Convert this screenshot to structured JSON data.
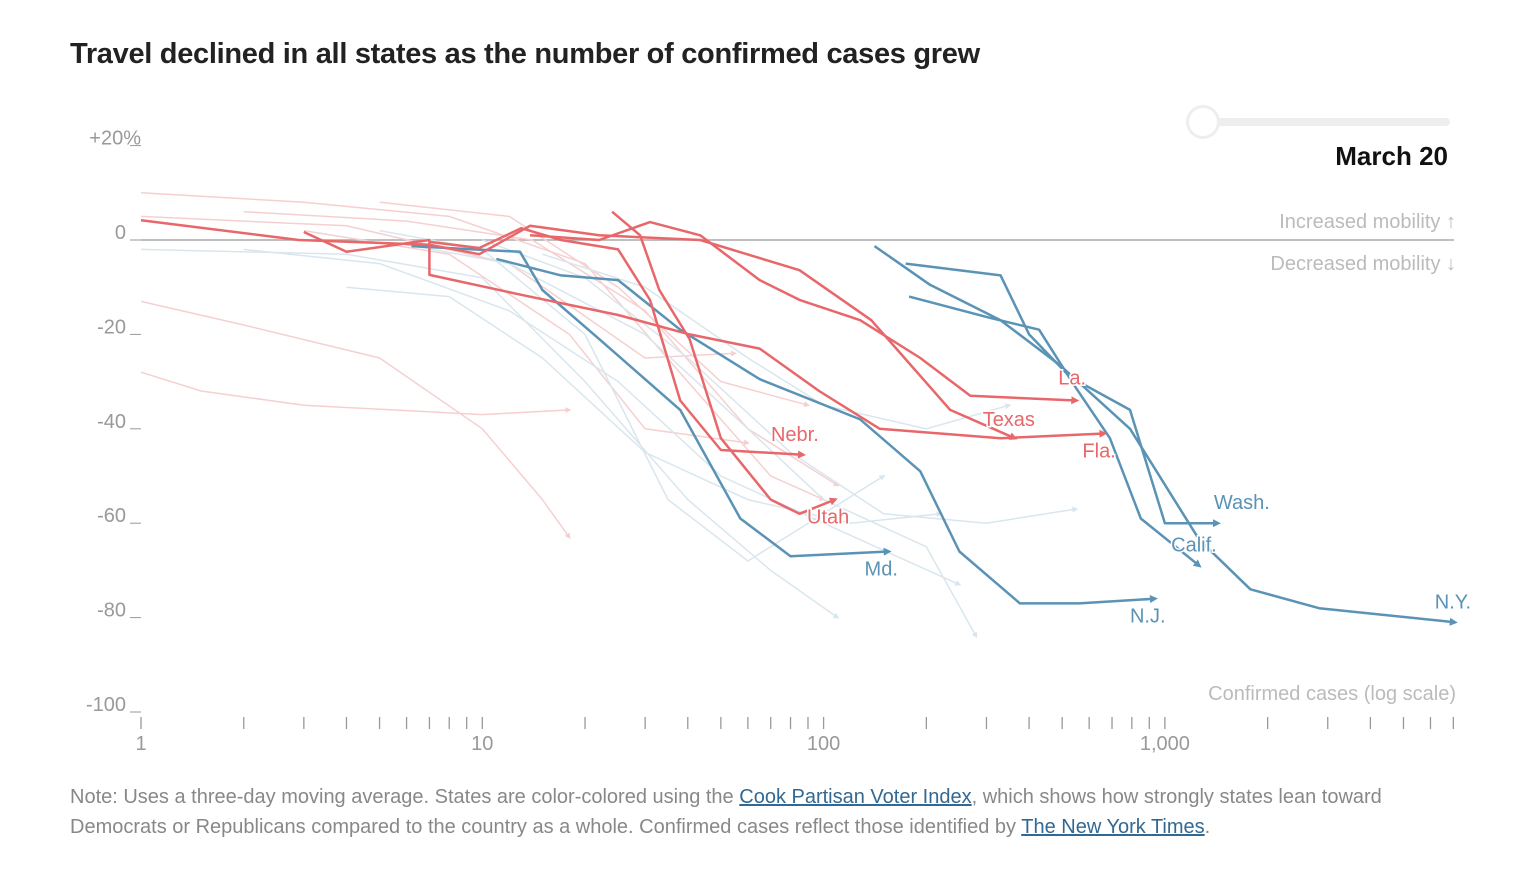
{
  "title": "Travel declined in all states as the number of confirmed cases grew",
  "slider": {
    "date_label": "March 20",
    "position": 0
  },
  "note": {
    "text1": "Note: Uses a three-day moving average. States are color-colored using the ",
    "link1": "Cook Partisan Voter Index",
    "text2": ", which shows how strongly states lean toward Democrats or Republicans compared to the country as a whole. Confirmed cases reflect those identified by ",
    "link2": "The New York Times",
    "text3": "."
  },
  "colors": {
    "republican": "#e8676a",
    "democrat": "#5a93b5",
    "republican_faint": "#f6d0d0",
    "democrat_faint": "#d9e6ee",
    "axis": "#aaaaaa",
    "label_gray": "#bbbbbb"
  },
  "chart_data": {
    "type": "line",
    "title": "Travel declined in all states as the number of confirmed cases grew",
    "xlabel": "Confirmed cases (log scale)",
    "x_scale": "log",
    "xlim": [
      1,
      7000
    ],
    "ylim": [
      -100,
      20
    ],
    "x_ticks": [
      {
        "value": 1,
        "label": "1"
      },
      {
        "value": 10,
        "label": "10"
      },
      {
        "value": 100,
        "label": "100"
      },
      {
        "value": 1000,
        "label": "1,000"
      }
    ],
    "y_ticks": [
      {
        "value": 20,
        "label": "+20%"
      },
      {
        "value": 0,
        "label": "0"
      },
      {
        "value": -20,
        "label": "-20"
      },
      {
        "value": -40,
        "label": "-40"
      },
      {
        "value": -60,
        "label": "-60"
      },
      {
        "value": -80,
        "label": "-80"
      },
      {
        "value": -100,
        "label": "-100"
      }
    ],
    "annotations": {
      "up": "Increased mobility ↑",
      "down": "Decreased mobility ↓"
    },
    "series": [
      {
        "name": "N.Y.",
        "party": "democrat",
        "x": [
          141,
          205,
          330,
          492,
          790,
          1260,
          1780,
          2830,
          7070
        ],
        "y": [
          -1.3,
          -9.5,
          -17,
          -26.5,
          -40,
          -63.5,
          -74,
          -78,
          -81
        ]
      },
      {
        "name": "Wash.",
        "party": "democrat",
        "x": [
          174,
          330,
          400,
          527,
          790,
          1000,
          1430
        ],
        "y": [
          -5,
          -7.5,
          -20,
          -29,
          -36,
          -60,
          -60
        ]
      },
      {
        "name": "Calif.",
        "party": "democrat",
        "x": [
          178,
          308,
          428,
          545,
          690,
          850,
          1260
        ],
        "y": [
          -12,
          -16.5,
          -19,
          -31,
          -42,
          -59,
          -69
        ]
      },
      {
        "name": "N.J.",
        "party": "democrat",
        "x": [
          11,
          17,
          25,
          38,
          65,
          128,
          192,
          250,
          376,
          560,
          935
        ],
        "y": [
          -4,
          -7.5,
          -8.5,
          -19,
          -29.5,
          -38,
          -49,
          -66,
          -77,
          -77,
          -76
        ]
      },
      {
        "name": "Md.",
        "party": "democrat",
        "x": [
          6.2,
          12.9,
          15,
          22,
          38,
          57,
          80,
          155
        ],
        "y": [
          -1.3,
          -2.5,
          -10.6,
          -21,
          -36,
          -59,
          -67,
          -66
        ]
      },
      {
        "name": "Nebr.",
        "party": "republican",
        "x": [
          7,
          9.8,
          13,
          17,
          25,
          31,
          38,
          50,
          87
        ],
        "y": [
          -0.4,
          -1.7,
          2.5,
          0,
          -2,
          -12.7,
          -34,
          -44.5,
          -45.5
        ]
      },
      {
        "name": "Utah",
        "party": "republican",
        "x": [
          24,
          29,
          33,
          40.5,
          50,
          70,
          85,
          108
        ],
        "y": [
          6,
          1,
          -10.6,
          -21,
          -42,
          -55,
          -58,
          -55
        ]
      },
      {
        "name": "Texas",
        "party": "republican",
        "x": [
          1,
          2.9,
          7,
          9.8,
          13.8,
          22,
          43.5,
          85,
          138,
          235,
          363
        ],
        "y": [
          4.2,
          0,
          -1,
          -3,
          3,
          1,
          0,
          -6.4,
          -17,
          -36,
          -42
        ]
      },
      {
        "name": "Fla.",
        "party": "republican",
        "x": [
          3,
          4,
          7,
          7,
          13,
          25,
          40.5,
          65,
          97,
          146,
          330,
          665
        ],
        "y": [
          1.7,
          -2.5,
          0,
          -7.4,
          -11.6,
          -15.9,
          -20,
          -23,
          -32,
          -40,
          -42,
          -41
        ]
      },
      {
        "name": "La.",
        "party": "republican",
        "x": [
          13.8,
          22,
          31,
          43.5,
          65,
          85,
          128,
          192,
          269,
          550
        ],
        "y": [
          1,
          0,
          3.8,
          1,
          -8.5,
          -12.7,
          -17,
          -25,
          -33,
          -34
        ]
      }
    ],
    "background_series": [
      {
        "party": "republican",
        "x": [
          1,
          3,
          8,
          20,
          40,
          70,
          100
        ],
        "y": [
          10,
          8,
          5,
          -5,
          -30,
          -50,
          -55
        ]
      },
      {
        "party": "republican",
        "x": [
          1,
          1.5,
          3,
          10,
          18
        ],
        "y": [
          -28,
          -32,
          -35,
          -37,
          -36
        ]
      },
      {
        "party": "republican",
        "x": [
          1,
          2,
          5,
          10,
          15,
          18
        ],
        "y": [
          -13,
          -18,
          -25,
          -40,
          -55,
          -63
        ]
      },
      {
        "party": "republican",
        "x": [
          2,
          6,
          14,
          30,
          60,
          110
        ],
        "y": [
          6,
          4,
          0,
          -15,
          -40,
          -52
        ]
      },
      {
        "party": "republican",
        "x": [
          5,
          12,
          25,
          50,
          90
        ],
        "y": [
          8,
          5,
          -10,
          -30,
          -35
        ]
      },
      {
        "party": "republican",
        "x": [
          3,
          8,
          18,
          30,
          60
        ],
        "y": [
          2,
          -3,
          -20,
          -40,
          -43
        ]
      },
      {
        "party": "republican",
        "x": [
          1,
          4,
          12,
          30,
          55
        ],
        "y": [
          5,
          3,
          -5,
          -25,
          -24
        ]
      },
      {
        "party": "democrat",
        "x": [
          1,
          4,
          10,
          20,
          40,
          70,
          110
        ],
        "y": [
          -2,
          -3,
          -8,
          -30,
          -55,
          -70,
          -80
        ]
      },
      {
        "party": "democrat",
        "x": [
          4,
          8,
          15,
          30,
          60,
          120,
          220
        ],
        "y": [
          -10,
          -12,
          -25,
          -45,
          -55,
          -60,
          -58
        ]
      },
      {
        "party": "democrat",
        "x": [
          6,
          12,
          30,
          60,
          100,
          200,
          280
        ],
        "y": [
          -1,
          -5,
          -20,
          -40,
          -55,
          -65,
          -84
        ]
      },
      {
        "party": "democrat",
        "x": [
          10,
          20,
          40,
          80,
          150,
          300,
          550
        ],
        "y": [
          0,
          -8,
          -25,
          -45,
          -58,
          -60,
          -57
        ]
      },
      {
        "party": "democrat",
        "x": [
          2,
          5,
          12,
          25,
          50,
          100,
          250
        ],
        "y": [
          -2,
          -5,
          -15,
          -30,
          -50,
          -60,
          -73
        ]
      },
      {
        "party": "democrat",
        "x": [
          5,
          10,
          20,
          35,
          60,
          150
        ],
        "y": [
          2,
          -2,
          -20,
          -55,
          -68,
          -50
        ]
      },
      {
        "party": "democrat",
        "x": [
          15,
          30,
          60,
          100,
          200,
          350
        ],
        "y": [
          -3,
          -10,
          -25,
          -35,
          -40,
          -35
        ]
      }
    ]
  }
}
